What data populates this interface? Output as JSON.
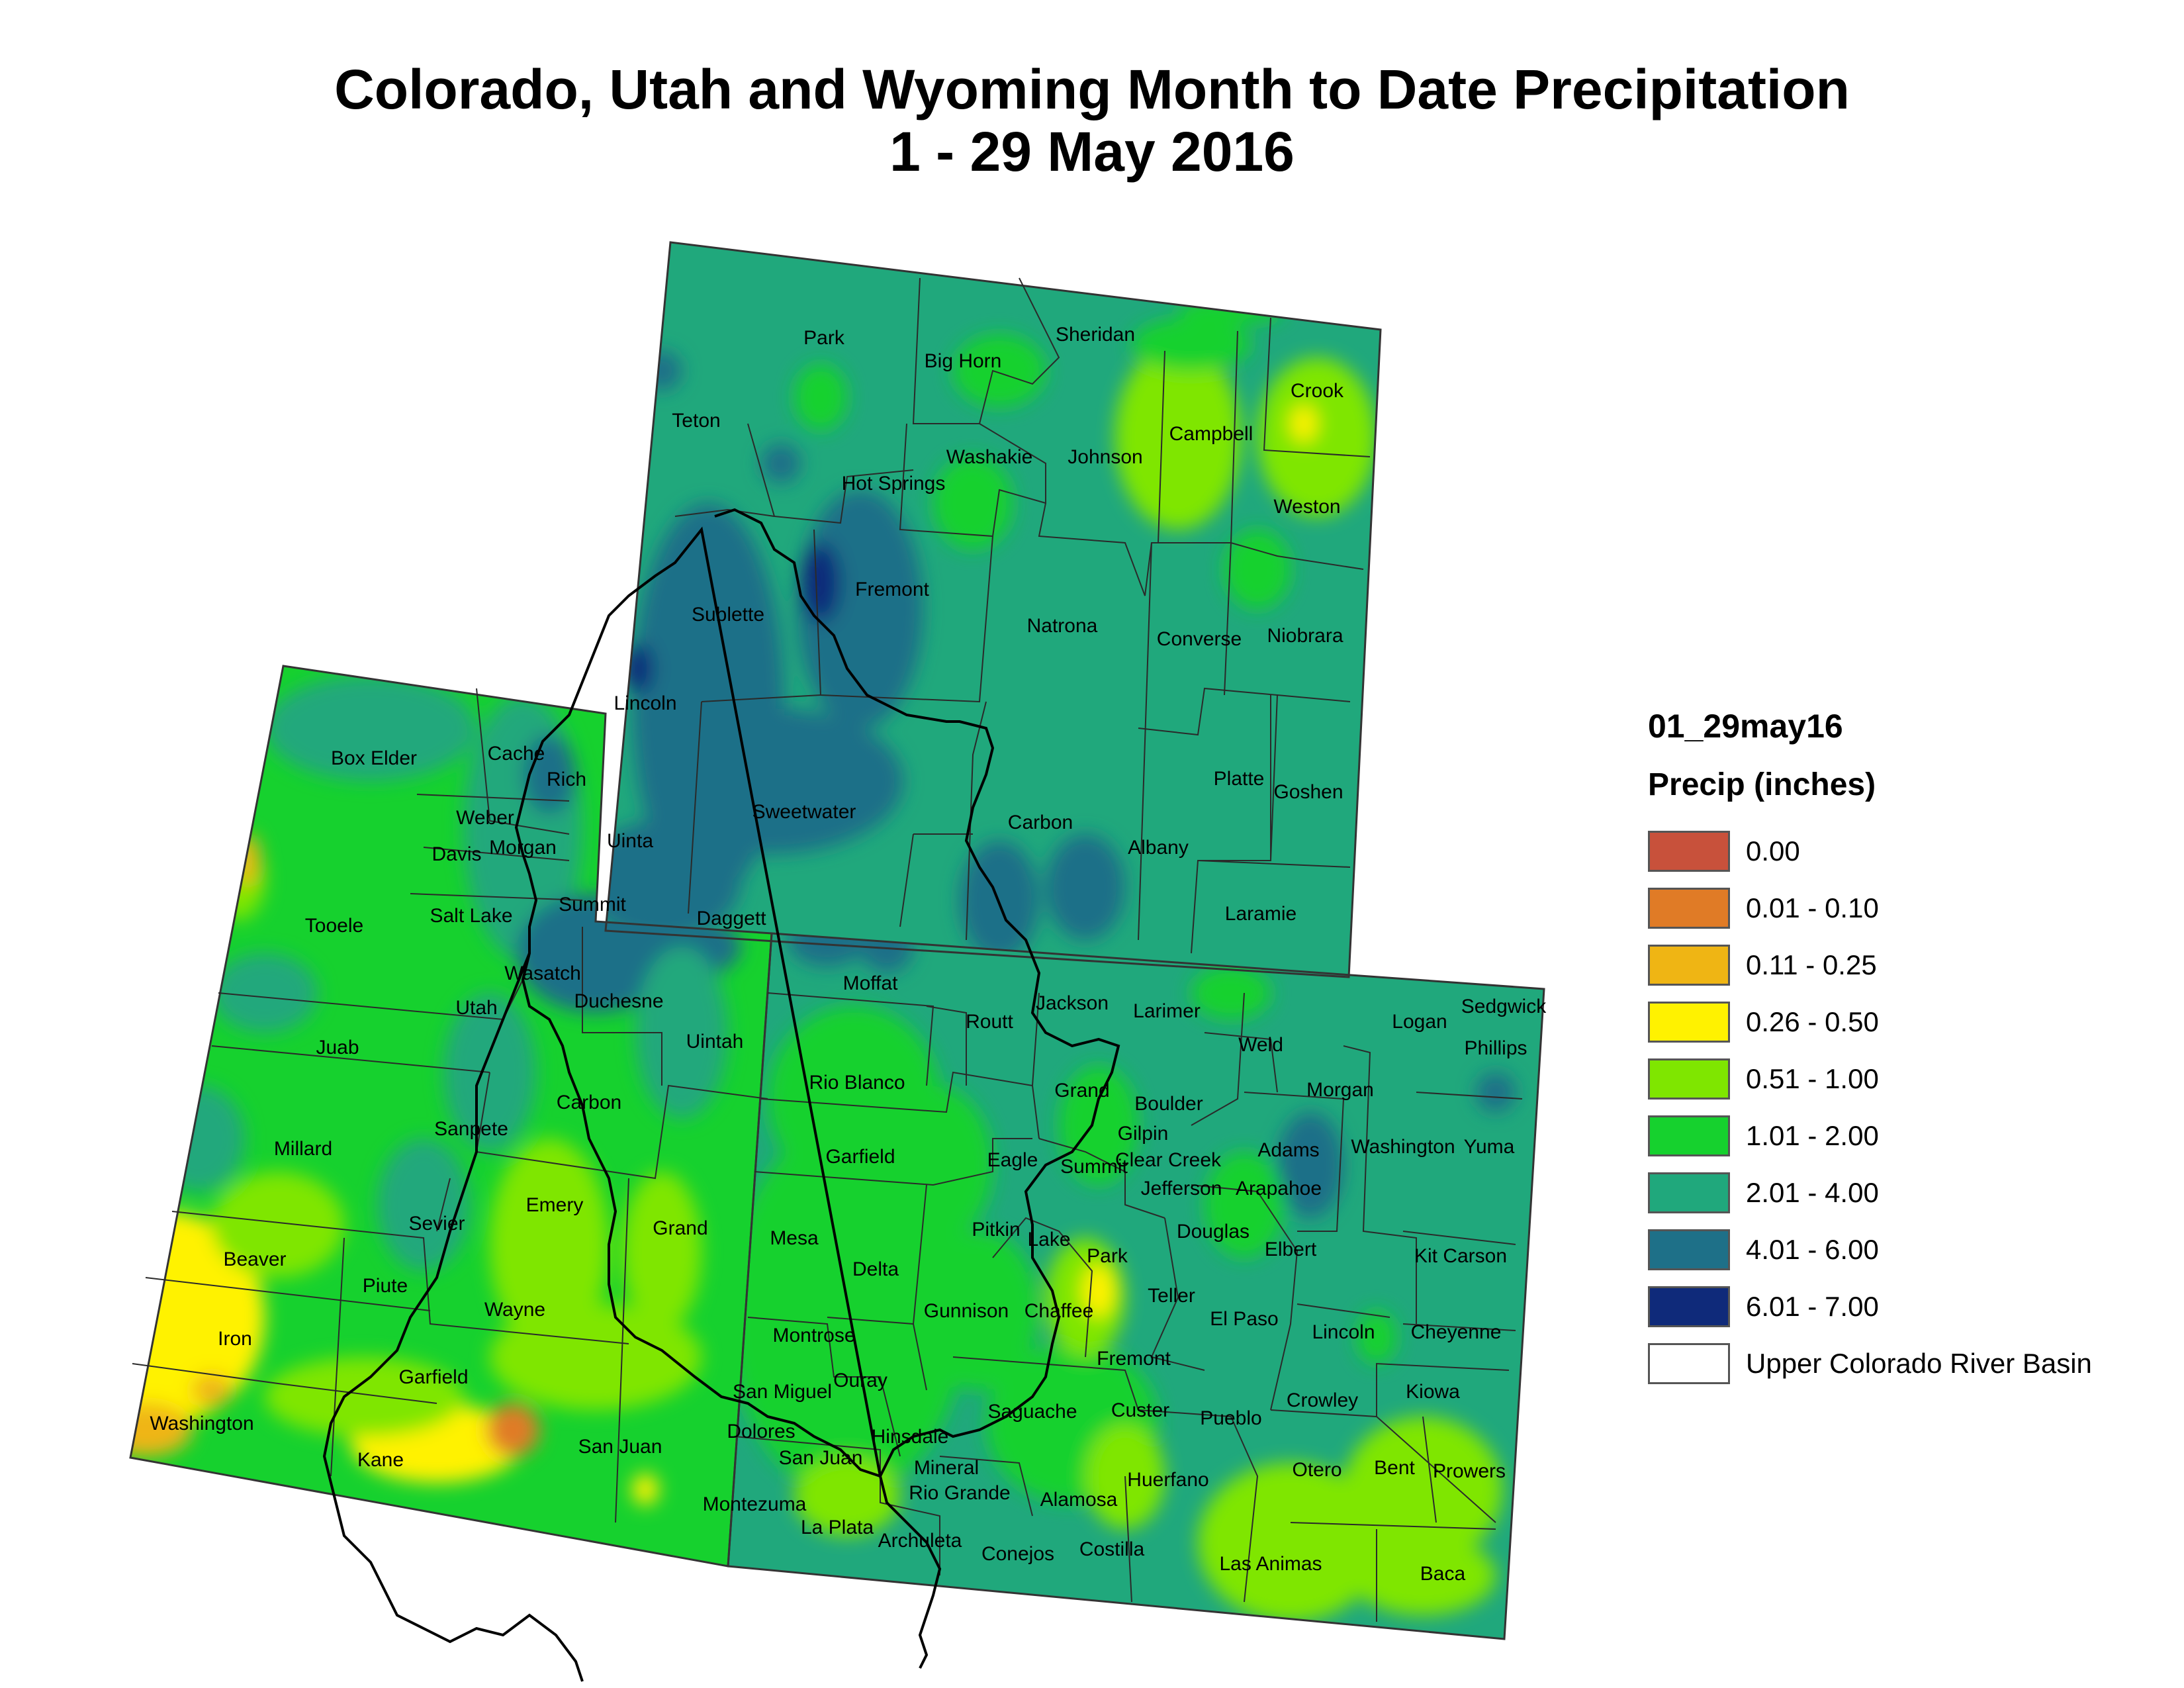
{
  "title": {
    "line1": "Colorado, Utah and Wyoming Month to Date Precipitation",
    "line2": "1 - 29 May 2016"
  },
  "legend": {
    "title": "01_29may16",
    "subtitle": "Precip (inches)",
    "items": [
      {
        "label": "0.00",
        "color": "#c8513b"
      },
      {
        "label": "0.01 - 0.10",
        "color": "#e07b26"
      },
      {
        "label": "0.11 - 0.25",
        "color": "#efb514"
      },
      {
        "label": "0.26 - 0.50",
        "color": "#fff200"
      },
      {
        "label": "0.51 - 1.00",
        "color": "#7fe600"
      },
      {
        "label": "1.01 - 2.00",
        "color": "#16d12e"
      },
      {
        "label": "2.01 - 4.00",
        "color": "#20a87c"
      },
      {
        "label": "4.01 - 6.00",
        "color": "#1e7088"
      },
      {
        "label": "6.01 - 7.00",
        "color": "#0f2a7a"
      },
      {
        "label": "Upper Colorado River Basin",
        "color": "#ffffff"
      }
    ]
  },
  "counties": {
    "wyoming": [
      "Park",
      "Big Horn",
      "Sheridan",
      "Crook",
      "Teton",
      "Washakie",
      "Johnson",
      "Campbell",
      "Hot Springs",
      "Weston",
      "Fremont",
      "Sublette",
      "Natrona",
      "Converse",
      "Niobrara",
      "Lincoln",
      "Sweetwater",
      "Carbon",
      "Albany",
      "Platte",
      "Goshen",
      "Uinta",
      "Laramie"
    ],
    "utah": [
      "Box Elder",
      "Cache",
      "Rich",
      "Weber",
      "Davis",
      "Morgan",
      "Summit",
      "Tooele",
      "Salt Lake",
      "Daggett",
      "Wasatch",
      "Utah",
      "Duchesne",
      "Uintah",
      "Juab",
      "Carbon",
      "Sanpete",
      "Millard",
      "Emery",
      "Sevier",
      "Grand",
      "Beaver",
      "Piute",
      "Wayne",
      "Iron",
      "Garfield",
      "Washington",
      "Kane",
      "San Juan"
    ],
    "colorado": [
      "Moffat",
      "Jackson",
      "Larimer",
      "Sedgwick",
      "Logan",
      "Phillips",
      "Routt",
      "Weld",
      "Rio Blanco",
      "Grand",
      "Boulder",
      "Morgan",
      "Gilpin",
      "Garfield",
      "Eagle",
      "Summit",
      "Clear Creek",
      "Adams",
      "Washington",
      "Yuma",
      "Jefferson",
      "Arapahoe",
      "Mesa",
      "Pitkin",
      "Lake",
      "Douglas",
      "Elbert",
      "Delta",
      "Park",
      "Kit Carson",
      "Teller",
      "Gunnison",
      "Chaffee",
      "El Paso",
      "Lincoln",
      "Cheyenne",
      "Montrose",
      "Fremont",
      "San Miguel",
      "Ouray",
      "Crowley",
      "Kiowa",
      "Saguache",
      "Custer",
      "Pueblo",
      "Dolores",
      "Hinsdale",
      "San Juan",
      "Mineral",
      "Otero",
      "Bent",
      "Prowers",
      "Huerfano",
      "Rio Grande",
      "Alamosa",
      "Montezuma",
      "La Plata",
      "Archuleta",
      "Conejos",
      "Costilla",
      "Las Animas",
      "Baca"
    ]
  }
}
